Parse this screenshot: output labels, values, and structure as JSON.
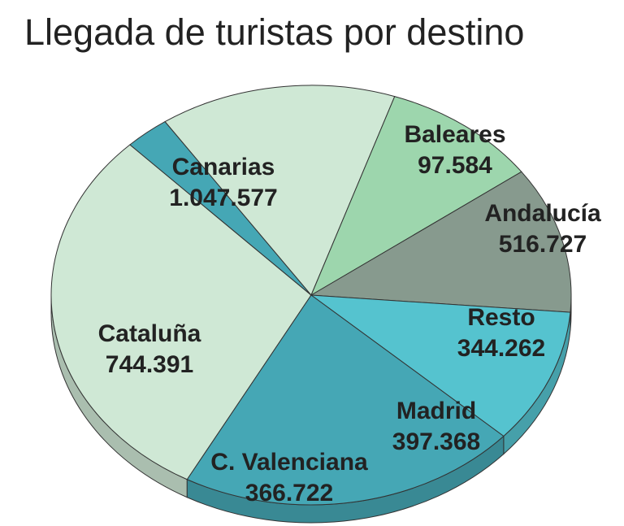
{
  "chart_data": {
    "type": "pie",
    "title": "Llegada de turistas por destino",
    "slices": [
      {
        "label": "Canarias",
        "value_text": "1.047.577",
        "value": 1047577,
        "color": "#cfe8d5"
      },
      {
        "label": "Baleares",
        "value_text": "97.584",
        "value": 97584,
        "color": "#45a7b5"
      },
      {
        "label": "Andalucía",
        "value_text": "516.727",
        "value": 516727,
        "color": "#cfe8d5"
      },
      {
        "label": "Resto",
        "value_text": "344.262",
        "value": 344262,
        "color": "#9dd6ad"
      },
      {
        "label": "Madrid",
        "value_text": "397.368",
        "value": 397368,
        "color": "#879a8e"
      },
      {
        "label": "C. Valenciana",
        "value_text": "366.722",
        "value": 366722,
        "color": "#55c3cf"
      },
      {
        "label": "Cataluña",
        "value_text": "744.391",
        "value": 744391,
        "color": "#45a7b5"
      }
    ]
  }
}
